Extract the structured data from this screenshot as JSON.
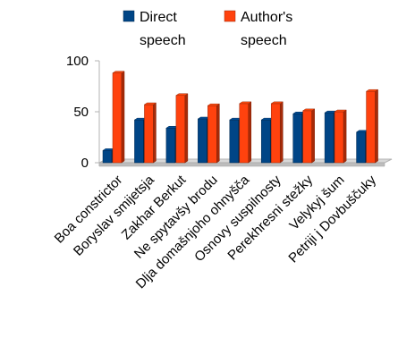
{
  "chart_data": {
    "type": "bar",
    "categories": [
      "Boa constrictor",
      "Boryslav smijetsja",
      "Zakhar Berkut",
      "Ne spytavšy brodu",
      "Dlja domašnjoho ohnyšča",
      "Osnovy suspilnosty",
      "Perekhresni stežky",
      "Velykyj šum",
      "Petriji j Dovbuščuky"
    ],
    "series": [
      {
        "name": "Direct speech",
        "values": [
          12,
          42,
          34,
          43,
          42,
          42,
          48,
          49,
          30
        ]
      },
      {
        "name": "Author's speech",
        "values": [
          88,
          57,
          66,
          56,
          58,
          58,
          51,
          50,
          70
        ]
      }
    ],
    "series_legend_lines": [
      [
        "Direct",
        "speech"
      ],
      [
        "Author's",
        "speech"
      ]
    ],
    "ylim": [
      0,
      100
    ],
    "yticks": [
      "0",
      "50",
      "100"
    ],
    "legend_position": "top",
    "grid": false,
    "bar_style": "3d",
    "colors": {
      "Direct speech": "#004586",
      "Author's speech": "#ff420e"
    }
  }
}
